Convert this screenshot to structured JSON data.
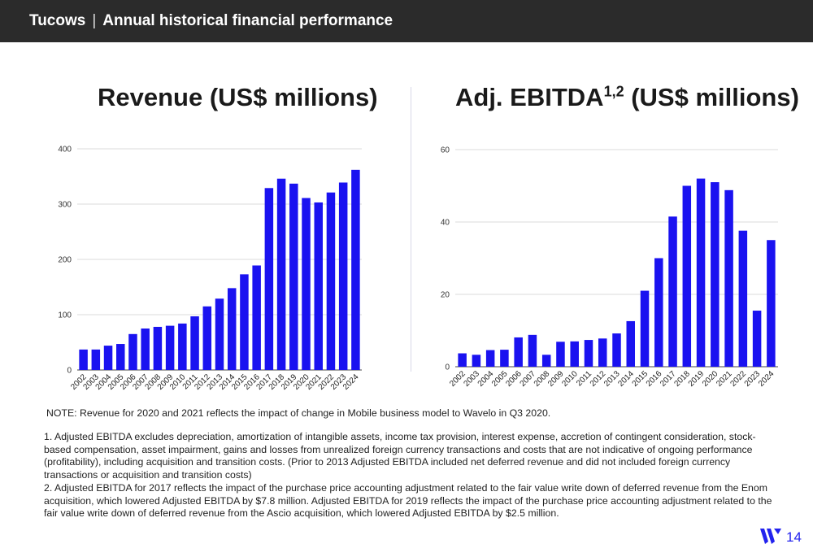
{
  "header": {
    "brand": "Tucows",
    "separator": "|",
    "title": "Annual historical financial performance"
  },
  "chart_data": [
    {
      "type": "bar",
      "title": "Revenue (US$ millions)",
      "color": "#1a12f0",
      "categories": [
        "2002",
        "2003",
        "2004",
        "2005",
        "2006",
        "2007",
        "2008",
        "2009",
        "2010",
        "2011",
        "2012",
        "2013",
        "2014",
        "2015",
        "2016",
        "2017",
        "2018",
        "2019",
        "2020",
        "2021",
        "2022",
        "2023",
        "2024"
      ],
      "values": [
        37,
        37,
        44,
        47,
        65,
        75,
        78,
        80,
        84,
        97,
        115,
        129,
        148,
        173,
        189,
        329,
        346,
        337,
        311,
        303,
        321,
        339,
        362
      ],
      "ylim": [
        0,
        400
      ],
      "yticks": [
        "0",
        "100",
        "200",
        "300",
        "400"
      ],
      "xlabel": "",
      "ylabel": "",
      "grid": true
    },
    {
      "type": "bar",
      "title": "Adj. EBITDA",
      "title_sup": "1,2",
      "title_suffix": " (US$ millions)",
      "color": "#1a12f0",
      "categories": [
        "2002",
        "2003",
        "2004",
        "2005",
        "2006",
        "2007",
        "2008",
        "2009",
        "2010",
        "2011",
        "2012",
        "2013",
        "2014",
        "2015",
        "2016",
        "2017",
        "2018",
        "2019",
        "2020",
        "2021",
        "2022",
        "2023",
        "2024"
      ],
      "values": [
        3.7,
        3.3,
        4.6,
        4.7,
        8.1,
        8.8,
        3.3,
        6.9,
        7.0,
        7.4,
        7.8,
        9.2,
        12.6,
        21.0,
        30.0,
        41.5,
        50.0,
        52.0,
        51.0,
        48.8,
        37.6,
        15.5,
        35.0
      ],
      "ylim": [
        0,
        60
      ],
      "yticks": [
        "0",
        "20",
        "40",
        "60"
      ],
      "xlabel": "",
      "ylabel": "",
      "grid": true
    }
  ],
  "note": "NOTE: Revenue for 2020 and 2021 reflects the impact of change in Mobile business model to Wavelo in Q3 2020.",
  "footnotes": [
    "1. Adjusted EBITDA excludes depreciation, amortization of intangible assets, income tax provision, interest expense, accretion of contingent consideration, stock-based compensation, asset impairment, gains and losses from unrealized foreign currency transactions and costs that are not indicative of ongoing performance (profitability), including acquisition and transition costs. (Prior to 2013 Adjusted EBITDA included net deferred revenue and did not included foreign currency transactions or acquisition and transition costs)",
    "2. Adjusted EBITDA for 2017 reflects the impact of the purchase price accounting adjustment related to the fair value write down of deferred revenue from the Enom acquisition, which lowered Adjusted EBITDA by $7.8 million. Adjusted EBITDA for 2019 reflects the impact of the purchase price accounting adjustment related to the fair value write down of deferred revenue from the Ascio acquisition, which lowered Adjusted EBITDA by $2.5 million."
  ],
  "page_number": "14",
  "logo_icon": "wavelo-w-logo-icon",
  "accent_color": "#2222ee"
}
